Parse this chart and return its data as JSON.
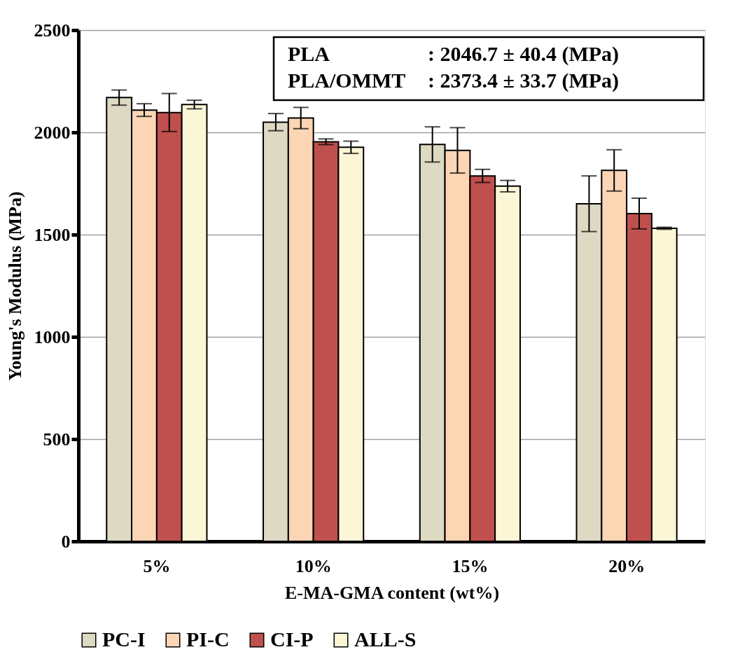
{
  "chart_data": {
    "type": "bar",
    "xlabel": "E-MA-GMA content (wt%)",
    "ylabel": "Young's Modulus (MPa)",
    "categories": [
      "5%",
      "10%",
      "15%",
      "20%"
    ],
    "series": [
      {
        "name": "PC-I",
        "color": "#ddd9c3",
        "values": [
          2170,
          2050,
          1941,
          1651
        ],
        "errors": [
          37,
          42,
          86,
          136
        ]
      },
      {
        "name": "PI-C",
        "color": "#fcd5b5",
        "values": [
          2109,
          2070,
          1912,
          1814
        ],
        "errors": [
          31,
          52,
          111,
          101
        ]
      },
      {
        "name": "CI-P",
        "color": "#c0504d",
        "values": [
          2097,
          1954,
          1787,
          1603
        ],
        "errors": [
          93,
          14,
          32,
          75
        ]
      },
      {
        "name": "ALL-S",
        "color": "#fbf7d6",
        "values": [
          2136,
          1927,
          1737,
          1531
        ],
        "errors": [
          21,
          30,
          28,
          5
        ]
      }
    ],
    "ylim": [
      0,
      2500
    ],
    "yticks": [
      0,
      500,
      1000,
      1500,
      2000,
      2500
    ],
    "grid": "y",
    "legend": "bottom",
    "annotations": [
      "PLA : 2046.7 ± 40.4 (MPa)",
      "PLA/OMMT : 2373.4 ± 33.7 (MPa)"
    ]
  }
}
